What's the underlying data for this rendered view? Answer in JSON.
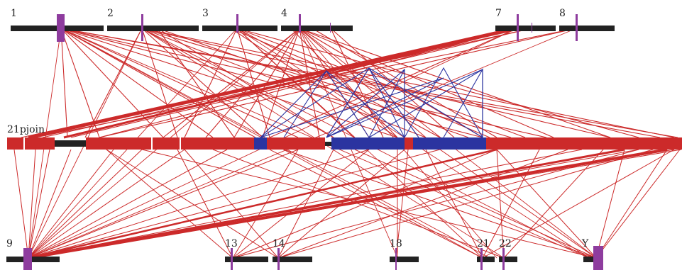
{
  "colors": {
    "chromosome": "#222222",
    "centromere": "#8e3c9e",
    "link_primary": "#cc2a2a",
    "link_secondary": "#2b34a0",
    "contig": "#cc2a2a",
    "block_secondary": "#2b34a0"
  },
  "top_chromosomes": [
    {
      "label": "1"
    },
    {
      "label": "2"
    },
    {
      "label": "3"
    },
    {
      "label": "4"
    },
    {
      "label": "7"
    },
    {
      "label": "8"
    }
  ],
  "middle_contig": {
    "label": "21pjoin"
  },
  "bottom_chromosomes": [
    {
      "label": "9"
    },
    {
      "label": "13"
    },
    {
      "label": "14"
    },
    {
      "label": "18"
    },
    {
      "label": "21"
    },
    {
      "label": "22"
    },
    {
      "label": "Y"
    }
  ]
}
